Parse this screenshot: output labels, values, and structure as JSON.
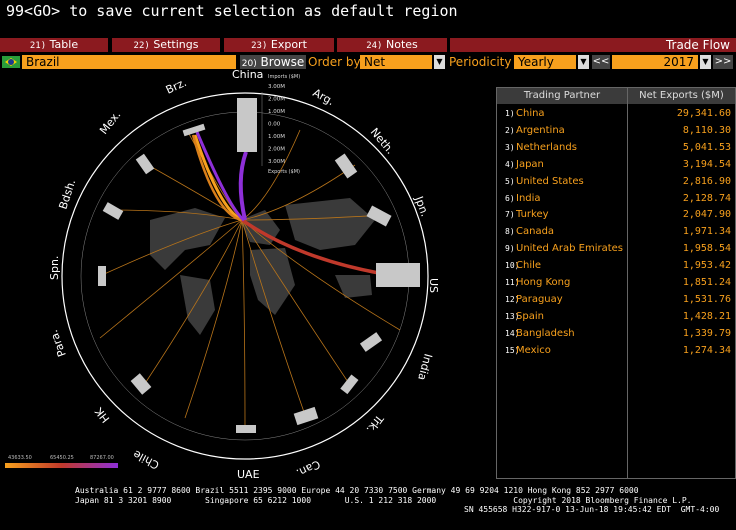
{
  "command": "99<GO> to save current selection as default region",
  "tabs": [
    {
      "num": "21)",
      "label": "Table"
    },
    {
      "num": "22)",
      "label": "Settings"
    },
    {
      "num": "23)",
      "label": "Export"
    },
    {
      "num": "24)",
      "label": "Notes"
    }
  ],
  "view_title": "Trade Flow",
  "controls": {
    "country": "Brazil",
    "browse_num": "20)",
    "browse_label": "Browse",
    "order_by_label": "Order by",
    "order_by_value": "Net Exports",
    "periodicity_label": "Periodicity",
    "periodicity_value": "Yearly",
    "prev_label": "<<",
    "year": "2017",
    "next_label": ">>"
  },
  "table": {
    "col_partner": "Trading Partner",
    "col_value": "Net Exports ($M)",
    "rows": [
      {
        "idx": "1)",
        "name": "China",
        "value": "29,341.60"
      },
      {
        "idx": "2)",
        "name": "Argentina",
        "value": "8,110.30"
      },
      {
        "idx": "3)",
        "name": "Netherlands",
        "value": "5,041.53"
      },
      {
        "idx": "4)",
        "name": "Japan",
        "value": "3,194.54"
      },
      {
        "idx": "5)",
        "name": "United States",
        "value": "2,816.90"
      },
      {
        "idx": "6)",
        "name": "India",
        "value": "2,128.74"
      },
      {
        "idx": "7)",
        "name": "Turkey",
        "value": "2,047.90"
      },
      {
        "idx": "8)",
        "name": "Canada",
        "value": "1,971.34"
      },
      {
        "idx": "9)",
        "name": "United Arab Emirates",
        "value": "1,958.54"
      },
      {
        "idx": "10)",
        "name": "Chile",
        "value": "1,953.42"
      },
      {
        "idx": "11)",
        "name": "Hong Kong",
        "value": "1,851.24"
      },
      {
        "idx": "12)",
        "name": "Paraguay",
        "value": "1,531.76"
      },
      {
        "idx": "13)",
        "name": "Spain",
        "value": "1,428.21"
      },
      {
        "idx": "14)",
        "name": "Bangladesh",
        "value": "1,339.79"
      },
      {
        "idx": "15)",
        "name": "Mexico",
        "value": "1,274.34"
      }
    ]
  },
  "radial": {
    "labels": [
      "China",
      "Arg.",
      "Neth.",
      "Jpn.",
      "US",
      "India",
      "Trk.",
      "Can.",
      "UAE",
      "Chile",
      "HK",
      "Para.",
      "Spn.",
      "Bdsh.",
      "Mex.",
      "Brz."
    ],
    "scale_top": "Imports ($M)",
    "scale_bottom": "Exports ($M)",
    "scale_ticks": [
      "3.00M",
      "2.00M",
      "1.00M",
      "0.00",
      "1.00M",
      "2.00M",
      "3.00M"
    ]
  },
  "legend": {
    "ticks": [
      "43633.50",
      "65450.25",
      "87267.00"
    ],
    "colors": [
      "#f7a01d",
      "#c0392b",
      "#8e2fd8"
    ]
  },
  "footer": {
    "line1": "Australia 61 2 9777 8600 Brazil 5511 2395 9000 Europe 44 20 7330 7500 Germany 49 69 9204 1210 Hong Kong 852 2977 6000",
    "line2": "Japan 81 3 3201 8900       Singapore 65 6212 1000       U.S. 1 212 318 2000                Copyright 2018 Bloomberg Finance L.P.",
    "line3": "SN 455658 H322-917-0 13-Jun-18 19:45:42 EDT  GMT-4:00"
  },
  "colors": {
    "accent": "#f7a01d",
    "tab_bg": "#8b1a1f",
    "china_flow": "#8e2fd8",
    "us_flow": "#c0392b"
  }
}
